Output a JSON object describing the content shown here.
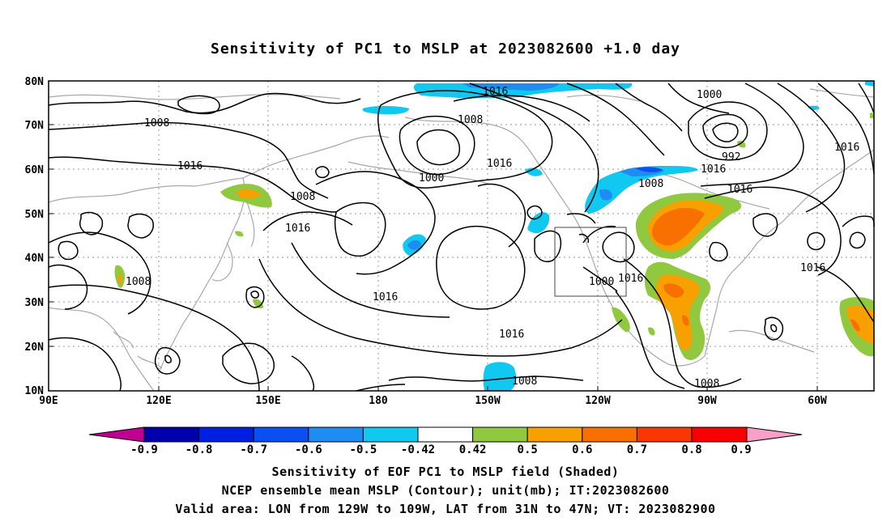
{
  "title": "Sensitivity of PC1 to MSLP at 2023082600 +1.0 day",
  "map": {
    "lat_labels": [
      "80N",
      "70N",
      "60N",
      "50N",
      "40N",
      "30N",
      "20N",
      "10N"
    ],
    "lon_labels": [
      "90E",
      "120E",
      "150E",
      "180",
      "150W",
      "120W",
      "90W",
      "60W"
    ],
    "contour_labels": [
      "1016",
      "1008",
      "1000",
      "1000",
      "992",
      "1008",
      "1016",
      "1016",
      "1008",
      "1016",
      "1008",
      "1016",
      "1016",
      "1016",
      "1016",
      "1008",
      "1016",
      "1016",
      "1008",
      "1008",
      "1000",
      "1016"
    ],
    "valid_box": {
      "lon_min": -129,
      "lon_max": -109,
      "lat_min": 31,
      "lat_max": 47
    }
  },
  "colorbar": {
    "labels": [
      "-0.9",
      "-0.8",
      "-0.7",
      "-0.6",
      "-0.5",
      "-0.42",
      "0.42",
      "0.5",
      "0.6",
      "0.7",
      "0.8",
      "0.9"
    ],
    "colors": [
      "#c00090",
      "#0000aa",
      "#0020e0",
      "#0a50f0",
      "#1e8cf0",
      "#10c8f0",
      "#ffffff",
      "#90c840",
      "#f8a000",
      "#f87000",
      "#f83800",
      "#f80000",
      "#f8a0c8"
    ]
  },
  "captions": [
    "Sensitivity of EOF PC1 to MSLP field (Shaded)",
    "NCEP ensemble mean MSLP (Contour); unit(mb); IT:2023082600",
    "Valid area: LON from 129W to 109W, LAT from 31N to 47N; VT: 2023082900"
  ]
}
